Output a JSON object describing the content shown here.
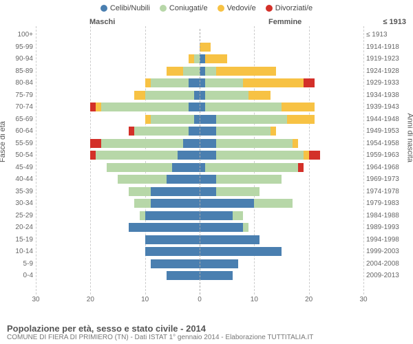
{
  "legend": [
    {
      "label": "Celibi/Nubili",
      "color": "#4a7fb0"
    },
    {
      "label": "Coniugati/e",
      "color": "#b7d7a8"
    },
    {
      "label": "Vedovi/e",
      "color": "#f7c244"
    },
    {
      "label": "Divorziati/e",
      "color": "#d33029"
    }
  ],
  "headers": {
    "male": "Maschi",
    "female": "Femmine",
    "right": "≤ 1913"
  },
  "y_title_left": "Fasce di età",
  "y_title_right": "Anni di nascita",
  "x_max": 30,
  "x_ticks": [
    30,
    20,
    10,
    0,
    10,
    20,
    30
  ],
  "footer_title": "Popolazione per età, sesso e stato civile - 2014",
  "footer_sub": "COMUNE DI FIERA DI PRIMIERO (TN) - Dati ISTAT 1° gennaio 2014 - Elaborazione TUTTITALIA.IT",
  "colors": {
    "celibi": "#4a7fb0",
    "coniugati": "#b7d7a8",
    "vedovi": "#f7c244",
    "divorziati": "#d33029",
    "grid": "#cccccc",
    "bg": "#ffffff"
  },
  "rows": [
    {
      "age": "100+",
      "year": "≤ 1913",
      "m": {
        "c": 0,
        "co": 0,
        "v": 0,
        "d": 0
      },
      "f": {
        "c": 0,
        "co": 0,
        "v": 0,
        "d": 0
      }
    },
    {
      "age": "95-99",
      "year": "1914-1918",
      "m": {
        "c": 0,
        "co": 0,
        "v": 0,
        "d": 0
      },
      "f": {
        "c": 0,
        "co": 0,
        "v": 2,
        "d": 0
      }
    },
    {
      "age": "90-94",
      "year": "1919-1923",
      "m": {
        "c": 0,
        "co": 1,
        "v": 1,
        "d": 0
      },
      "f": {
        "c": 1,
        "co": 0,
        "v": 4,
        "d": 0
      }
    },
    {
      "age": "85-89",
      "year": "1924-1928",
      "m": {
        "c": 0,
        "co": 3,
        "v": 3,
        "d": 0
      },
      "f": {
        "c": 1,
        "co": 2,
        "v": 11,
        "d": 0
      }
    },
    {
      "age": "80-84",
      "year": "1929-1933",
      "m": {
        "c": 2,
        "co": 7,
        "v": 1,
        "d": 0
      },
      "f": {
        "c": 1,
        "co": 7,
        "v": 11,
        "d": 2
      }
    },
    {
      "age": "75-79",
      "year": "1934-1938",
      "m": {
        "c": 1,
        "co": 9,
        "v": 2,
        "d": 0
      },
      "f": {
        "c": 1,
        "co": 8,
        "v": 4,
        "d": 0
      }
    },
    {
      "age": "70-74",
      "year": "1939-1943",
      "m": {
        "c": 2,
        "co": 16,
        "v": 1,
        "d": 1
      },
      "f": {
        "c": 1,
        "co": 14,
        "v": 6,
        "d": 0
      }
    },
    {
      "age": "65-69",
      "year": "1944-1948",
      "m": {
        "c": 1,
        "co": 8,
        "v": 1,
        "d": 0
      },
      "f": {
        "c": 3,
        "co": 13,
        "v": 5,
        "d": 0
      }
    },
    {
      "age": "60-64",
      "year": "1949-1953",
      "m": {
        "c": 2,
        "co": 10,
        "v": 0,
        "d": 1
      },
      "f": {
        "c": 3,
        "co": 10,
        "v": 1,
        "d": 0
      }
    },
    {
      "age": "55-59",
      "year": "1954-1958",
      "m": {
        "c": 3,
        "co": 15,
        "v": 0,
        "d": 2
      },
      "f": {
        "c": 3,
        "co": 14,
        "v": 1,
        "d": 0
      }
    },
    {
      "age": "50-54",
      "year": "1959-1963",
      "m": {
        "c": 4,
        "co": 15,
        "v": 0,
        "d": 1
      },
      "f": {
        "c": 3,
        "co": 16,
        "v": 1,
        "d": 2
      }
    },
    {
      "age": "45-49",
      "year": "1964-1968",
      "m": {
        "c": 5,
        "co": 12,
        "v": 0,
        "d": 0
      },
      "f": {
        "c": 1,
        "co": 17,
        "v": 0,
        "d": 1
      }
    },
    {
      "age": "40-44",
      "year": "1969-1973",
      "m": {
        "c": 6,
        "co": 9,
        "v": 0,
        "d": 0
      },
      "f": {
        "c": 3,
        "co": 12,
        "v": 0,
        "d": 0
      }
    },
    {
      "age": "35-39",
      "year": "1974-1978",
      "m": {
        "c": 9,
        "co": 4,
        "v": 0,
        "d": 0
      },
      "f": {
        "c": 3,
        "co": 8,
        "v": 0,
        "d": 0
      }
    },
    {
      "age": "30-34",
      "year": "1979-1983",
      "m": {
        "c": 9,
        "co": 3,
        "v": 0,
        "d": 0
      },
      "f": {
        "c": 10,
        "co": 7,
        "v": 0,
        "d": 0
      }
    },
    {
      "age": "25-29",
      "year": "1984-1988",
      "m": {
        "c": 10,
        "co": 1,
        "v": 0,
        "d": 0
      },
      "f": {
        "c": 6,
        "co": 2,
        "v": 0,
        "d": 0
      }
    },
    {
      "age": "20-24",
      "year": "1989-1993",
      "m": {
        "c": 13,
        "co": 0,
        "v": 0,
        "d": 0
      },
      "f": {
        "c": 8,
        "co": 1,
        "v": 0,
        "d": 0
      }
    },
    {
      "age": "15-19",
      "year": "1994-1998",
      "m": {
        "c": 10,
        "co": 0,
        "v": 0,
        "d": 0
      },
      "f": {
        "c": 11,
        "co": 0,
        "v": 0,
        "d": 0
      }
    },
    {
      "age": "10-14",
      "year": "1999-2003",
      "m": {
        "c": 10,
        "co": 0,
        "v": 0,
        "d": 0
      },
      "f": {
        "c": 15,
        "co": 0,
        "v": 0,
        "d": 0
      }
    },
    {
      "age": "5-9",
      "year": "2004-2008",
      "m": {
        "c": 9,
        "co": 0,
        "v": 0,
        "d": 0
      },
      "f": {
        "c": 7,
        "co": 0,
        "v": 0,
        "d": 0
      }
    },
    {
      "age": "0-4",
      "year": "2009-2013",
      "m": {
        "c": 6,
        "co": 0,
        "v": 0,
        "d": 0
      },
      "f": {
        "c": 6,
        "co": 0,
        "v": 0,
        "d": 0
      }
    }
  ]
}
